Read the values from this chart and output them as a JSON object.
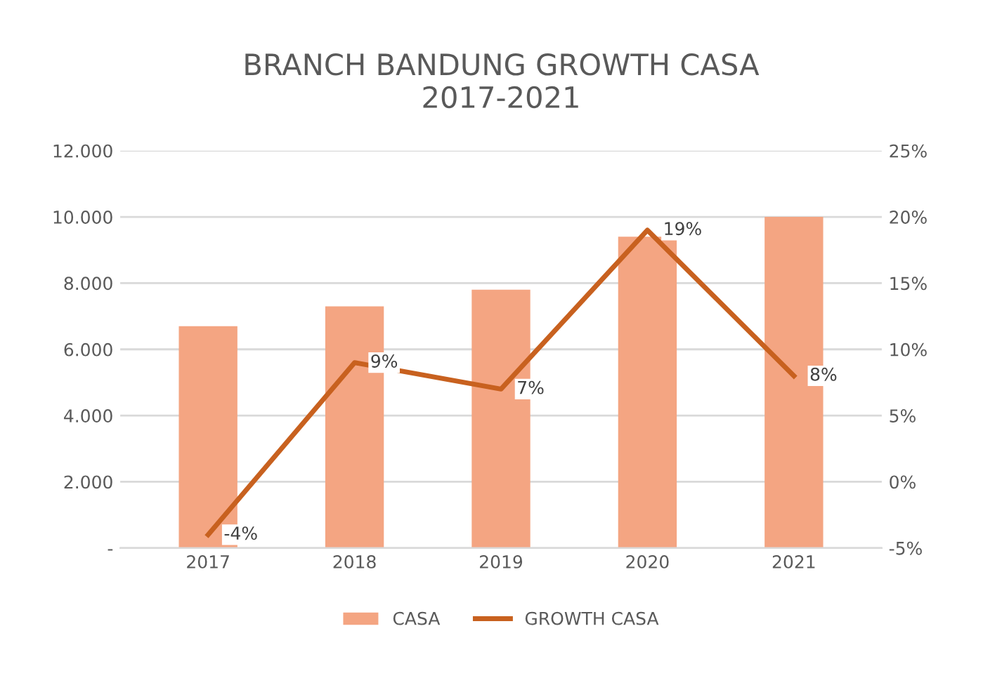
{
  "chart_data": {
    "type": "bar",
    "title": "BRANCH BANDUNG GROWTH CASA\n2017-2021",
    "categories": [
      "2017",
      "2018",
      "2019",
      "2020",
      "2021"
    ],
    "series": [
      {
        "name": "CASA",
        "color": "#f4a582",
        "values": [
          6700,
          7300,
          7800,
          9400,
          10000
        ]
      },
      {
        "name": "GROWTH CASA",
        "type": "line",
        "axis": "y2",
        "color": "#c8611f",
        "values": [
          -4,
          9,
          7,
          19,
          8
        ],
        "value_labels": [
          "-4%",
          "9%",
          "7%",
          "19%",
          "8%"
        ]
      }
    ],
    "ylim": [
      0,
      12000
    ],
    "yticks": [
      {
        "value": 0,
        "label": "-"
      },
      {
        "value": 2000,
        "label": "2.000"
      },
      {
        "value": 4000,
        "label": "4.000"
      },
      {
        "value": 6000,
        "label": "6.000"
      },
      {
        "value": 8000,
        "label": "8.000"
      },
      {
        "value": 10000,
        "label": "10.000"
      },
      {
        "value": 12000,
        "label": "12.000"
      }
    ],
    "y2lim": [
      -5,
      25
    ],
    "y2ticks": [
      {
        "value": -5,
        "label": "-5%"
      },
      {
        "value": 0,
        "label": "0%"
      },
      {
        "value": 5,
        "label": "5%"
      },
      {
        "value": 10,
        "label": "10%"
      },
      {
        "value": 15,
        "label": "15%"
      },
      {
        "value": 20,
        "label": "20%"
      },
      {
        "value": 25,
        "label": "25%"
      }
    ],
    "grid": "y",
    "legend": "bottom",
    "marker": "none",
    "line_style": "solid"
  }
}
